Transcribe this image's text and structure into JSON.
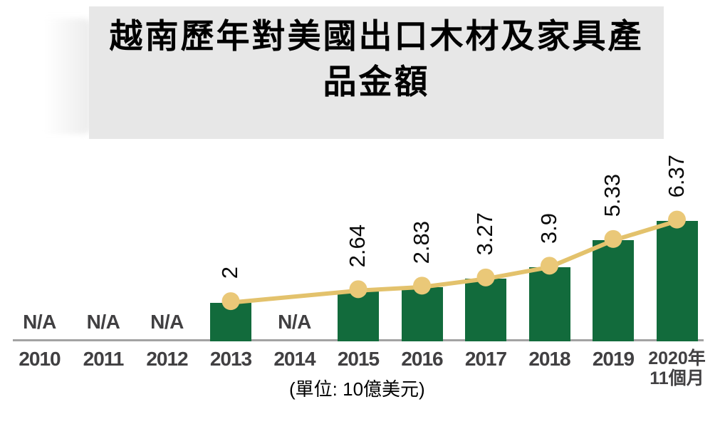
{
  "title": {
    "line1": "越南歷年對美國出口木材及家具產",
    "line2": "品金額",
    "full": "越南歷年對美國出口木材及家具產品金額"
  },
  "unit_note": "(單位: 10億美元)",
  "colors": {
    "bar": "#126B3C",
    "line": "#E3C26C",
    "marker": "#EAC878",
    "title_bg": "#E7E7E7",
    "axis": "#A3A3A3",
    "value_text": "#0a0a0a",
    "year_text": "#414042"
  },
  "chart_data": {
    "type": "bar",
    "line_overlay": true,
    "title": "越南歷年對美國出口木材及家具產品金額",
    "categories": [
      "2010",
      "2011",
      "2012",
      "2013",
      "2014",
      "2015",
      "2016",
      "2017",
      "2018",
      "2019",
      "2020年11個月"
    ],
    "category_lines": [
      [
        "2010"
      ],
      [
        "2011"
      ],
      [
        "2012"
      ],
      [
        "2013"
      ],
      [
        "2014"
      ],
      [
        "2015"
      ],
      [
        "2016"
      ],
      [
        "2017"
      ],
      [
        "2018"
      ],
      [
        "2019"
      ],
      [
        "2020年",
        "11個月"
      ]
    ],
    "values": [
      null,
      null,
      null,
      2,
      null,
      2.64,
      2.83,
      3.27,
      3.9,
      5.33,
      6.37
    ],
    "value_labels": [
      "N/A",
      "N/A",
      "N/A",
      "2",
      "N/A",
      "2.64",
      "2.83",
      "3.27",
      "3.9",
      "5.33",
      "6.37"
    ],
    "na_text": "N/A",
    "ylim": [
      0,
      7
    ],
    "xlabel": "",
    "ylabel": "10億美元",
    "grid": false,
    "legend": "none"
  }
}
